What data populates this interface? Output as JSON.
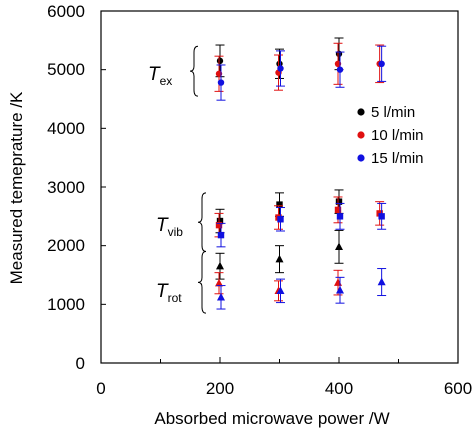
{
  "chart_data": {
    "type": "scatter",
    "title": "",
    "xlabel": "Absorbed microwave power /W",
    "ylabel": "Measured temeprature /K",
    "xlim": [
      0,
      600
    ],
    "ylim": [
      0,
      6000
    ],
    "xticks": [
      "0",
      "200",
      "400",
      "600"
    ],
    "yticks": [
      "0",
      "1000",
      "2000",
      "3000",
      "4000",
      "5000",
      "6000"
    ],
    "grid": false,
    "legend_position": "right",
    "series": [
      {
        "name": "5 l/min",
        "color": "#000000",
        "Tex": {
          "x": [
            200,
            300,
            400
          ],
          "y": [
            5150,
            5100,
            5270
          ],
          "err": [
            270,
            250,
            270
          ]
        },
        "Tvib": {
          "x": [
            200,
            300,
            400
          ],
          "y": [
            2420,
            2700,
            2750
          ],
          "err": [
            200,
            200,
            200
          ]
        },
        "Trot": {
          "x": [
            200,
            300,
            400
          ],
          "y": [
            1650,
            1770,
            1980
          ],
          "err": [
            220,
            230,
            280
          ]
        }
      },
      {
        "name": "10 l/min",
        "color": "#e01010",
        "Tex": {
          "x": [
            200,
            300,
            400,
            470
          ],
          "y": [
            4930,
            4950,
            5100,
            5100
          ],
          "err": [
            300,
            300,
            350,
            320
          ]
        },
        "Tvib": {
          "x": [
            200,
            300,
            400,
            470
          ],
          "y": [
            2350,
            2480,
            2610,
            2550
          ],
          "err": [
            200,
            200,
            220,
            200
          ]
        },
        "Trot": {
          "x": [
            200,
            300,
            400
          ],
          "y": [
            1360,
            1230,
            1370
          ],
          "err": [
            180,
            170,
            210
          ]
        }
      },
      {
        "name": "15 l/min",
        "color": "#1010e0",
        "Tex": {
          "x": [
            200,
            300,
            400,
            470
          ],
          "y": [
            4780,
            5020,
            5000,
            5100
          ],
          "err": [
            300,
            300,
            300,
            300
          ]
        },
        "Tvib": {
          "x": [
            200,
            300,
            400,
            470
          ],
          "y": [
            2180,
            2450,
            2500,
            2500
          ],
          "err": [
            200,
            200,
            220,
            220
          ]
        },
        "Trot": {
          "x": [
            200,
            300,
            400,
            470
          ],
          "y": [
            1120,
            1230,
            1240,
            1380
          ],
          "err": [
            200,
            200,
            220,
            230
          ]
        }
      }
    ],
    "annotations": {
      "tex_main": "T",
      "tex_sub": "ex",
      "tvib_main": "T",
      "tvib_sub": "vib",
      "trot_main": "T",
      "trot_sub": "rot"
    }
  }
}
